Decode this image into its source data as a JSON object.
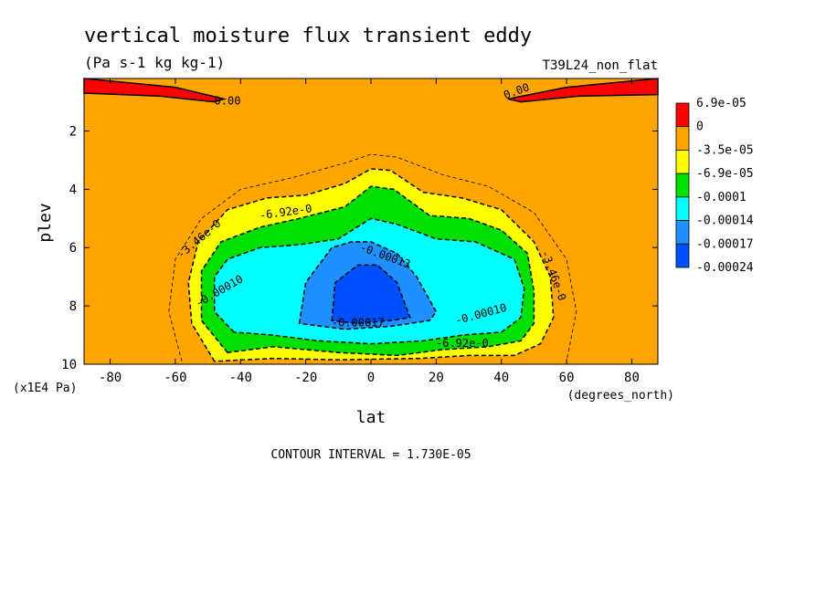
{
  "chart_data": {
    "type": "contour",
    "title": "vertical moisture flux transient eddy",
    "units": "(Pa s-1 kg kg-1)",
    "run_label": "T39L24_non_flat",
    "xlabel": "lat",
    "x_units": "(degrees_north)",
    "ylabel": "plev",
    "y_units": "(x1E4 Pa)",
    "xlim": [
      -88,
      88
    ],
    "ylim": [
      10,
      0.2
    ],
    "x_ticks": [
      -80,
      -60,
      -40,
      -20,
      0,
      20,
      40,
      60,
      80
    ],
    "y_ticks": [
      2,
      4,
      6,
      8,
      10
    ],
    "contour_interval_text": "CONTOUR INTERVAL = 1.730E-05",
    "colorbar": {
      "labels": [
        "6.9e-05",
        "0",
        "-3.5e-05",
        "-6.9e-05",
        "-0.0001",
        "-0.00014",
        "-0.00017",
        "-0.00024"
      ],
      "colors": [
        "#ff0000",
        "#ffa500",
        "#ffff00",
        "#00e000",
        "#00ffff",
        "#1e90ff",
        "#0050ff"
      ]
    },
    "contour_labels": [
      "0.00",
      "0.00",
      "-3.46e-0",
      "-6.92e-0",
      "-0.00010",
      "-0.00013",
      "-0.00017",
      "-0.00010",
      "-6.92e-0",
      "-3.46e-0"
    ],
    "regions": [
      {
        "level": "-3.5e-05",
        "color": "#ffff00",
        "boundary": [
          [
            -48,
            9.9
          ],
          [
            -55,
            8.6
          ],
          [
            -56,
            7.2
          ],
          [
            -53,
            5.8
          ],
          [
            -44,
            4.7
          ],
          [
            -32,
            4.3
          ],
          [
            -20,
            4.2
          ],
          [
            -8,
            3.8
          ],
          [
            0,
            3.3
          ],
          [
            6,
            3.35
          ],
          [
            16,
            4.1
          ],
          [
            28,
            4.3
          ],
          [
            40,
            4.7
          ],
          [
            50,
            5.8
          ],
          [
            55,
            7.0
          ],
          [
            56,
            8.4
          ],
          [
            52,
            9.3
          ],
          [
            44,
            9.7
          ],
          [
            30,
            9.7
          ],
          [
            15,
            9.8
          ],
          [
            -10,
            9.85
          ],
          [
            -30,
            9.8
          ]
        ]
      },
      {
        "level": "-6.9e-05",
        "color": "#00e000",
        "boundary": [
          [
            -44,
            9.6
          ],
          [
            -52,
            8.5
          ],
          [
            -52,
            6.8
          ],
          [
            -46,
            5.8
          ],
          [
            -34,
            5.3
          ],
          [
            -22,
            5.0
          ],
          [
            -8,
            4.6
          ],
          [
            0,
            3.9
          ],
          [
            7,
            4.0
          ],
          [
            18,
            4.9
          ],
          [
            30,
            5.0
          ],
          [
            40,
            5.4
          ],
          [
            48,
            6.2
          ],
          [
            50,
            7.5
          ],
          [
            50,
            8.6
          ],
          [
            46,
            9.2
          ],
          [
            36,
            9.4
          ],
          [
            22,
            9.5
          ],
          [
            8,
            9.7
          ],
          [
            -10,
            9.6
          ],
          [
            -30,
            9.4
          ]
        ]
      },
      {
        "level": "-0.0001",
        "color": "#00ffff",
        "boundary": [
          [
            -42,
            8.9
          ],
          [
            -48,
            8.2
          ],
          [
            -48,
            7.0
          ],
          [
            -44,
            6.4
          ],
          [
            -34,
            6.0
          ],
          [
            -22,
            5.9
          ],
          [
            -10,
            5.7
          ],
          [
            0,
            5.0
          ],
          [
            8,
            5.2
          ],
          [
            20,
            5.7
          ],
          [
            32,
            5.8
          ],
          [
            44,
            6.4
          ],
          [
            47,
            7.4
          ],
          [
            46,
            8.4
          ],
          [
            40,
            8.9
          ],
          [
            28,
            9.0
          ],
          [
            16,
            9.2
          ],
          [
            0,
            9.3
          ],
          [
            -16,
            9.2
          ],
          [
            -30,
            9.0
          ]
        ]
      },
      {
        "level": "-0.00014",
        "color": "#1e90ff",
        "boundary": [
          [
            -22,
            8.6
          ],
          [
            -20,
            7.2
          ],
          [
            -12,
            6.0
          ],
          [
            -6,
            5.8
          ],
          [
            0,
            5.8
          ],
          [
            8,
            6.2
          ],
          [
            14,
            7.0
          ],
          [
            20,
            8.2
          ],
          [
            18,
            8.5
          ],
          [
            6,
            8.7
          ],
          [
            -8,
            8.8
          ]
        ]
      },
      {
        "level": "-0.00017",
        "color": "#0050ff",
        "boundary": [
          [
            -12,
            8.5
          ],
          [
            -11,
            7.2
          ],
          [
            -4,
            6.6
          ],
          [
            2,
            6.6
          ],
          [
            8,
            7.2
          ],
          [
            12,
            8.4
          ],
          [
            6,
            8.5
          ],
          [
            -4,
            8.6
          ]
        ]
      },
      {
        "level": "6.9e-05",
        "color": "#ff0000",
        "boundary": [
          [
            -88,
            0.2
          ],
          [
            -60,
            0.5
          ],
          [
            -45,
            0.9
          ],
          [
            -48,
            1.0
          ],
          [
            -65,
            0.8
          ],
          [
            -88,
            0.7
          ]
        ]
      },
      {
        "level": "6.9e-05",
        "color": "#ff0000",
        "boundary": [
          [
            88,
            0.2
          ],
          [
            60,
            0.5
          ],
          [
            42,
            0.9
          ],
          [
            46,
            1.0
          ],
          [
            64,
            0.8
          ],
          [
            88,
            0.75
          ]
        ]
      }
    ]
  }
}
